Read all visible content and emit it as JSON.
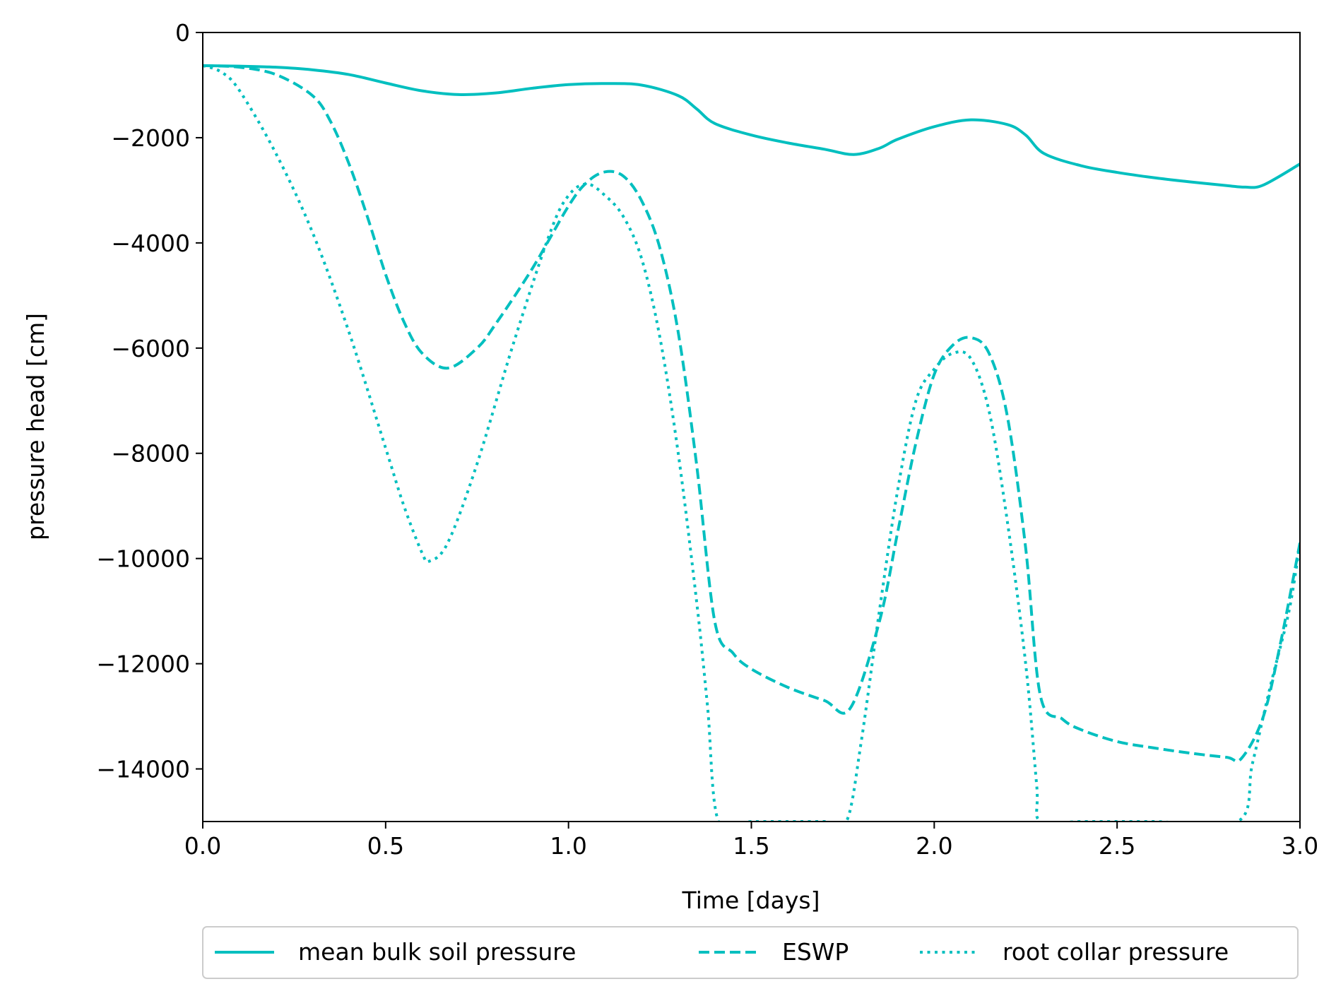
{
  "chart_data": {
    "type": "line",
    "xlabel": "Time [days]",
    "ylabel": "pressure head [cm]",
    "xlim": [
      0,
      3
    ],
    "ylim": [
      -15000,
      0
    ],
    "x_ticks": [
      0,
      0.5,
      1,
      1.5,
      2,
      2.5,
      3
    ],
    "x_tick_labels": [
      "0.0",
      "0.5",
      "1.0",
      "1.5",
      "2.0",
      "2.5",
      "3.0"
    ],
    "y_ticks": [
      0,
      -2000,
      -4000,
      -6000,
      -8000,
      -10000,
      -12000,
      -14000
    ],
    "y_tick_labels": [
      "0",
      "−2000",
      "−4000",
      "−6000",
      "−8000",
      "−10000",
      "−12000",
      "−14000"
    ],
    "grid": false,
    "legend_position": "bottom-outside",
    "series": [
      {
        "name": "mean bulk soil pressure",
        "style": "solid",
        "color": "#00bfbf",
        "points": [
          [
            0,
            -630
          ],
          [
            0.1,
            -640
          ],
          [
            0.2,
            -660
          ],
          [
            0.3,
            -710
          ],
          [
            0.4,
            -800
          ],
          [
            0.5,
            -960
          ],
          [
            0.6,
            -1110
          ],
          [
            0.7,
            -1180
          ],
          [
            0.8,
            -1150
          ],
          [
            0.9,
            -1060
          ],
          [
            1.0,
            -990
          ],
          [
            1.1,
            -970
          ],
          [
            1.2,
            -1000
          ],
          [
            1.3,
            -1200
          ],
          [
            1.35,
            -1450
          ],
          [
            1.4,
            -1730
          ],
          [
            1.5,
            -1950
          ],
          [
            1.6,
            -2100
          ],
          [
            1.7,
            -2220
          ],
          [
            1.78,
            -2320
          ],
          [
            1.85,
            -2200
          ],
          [
            1.9,
            -2030
          ],
          [
            2.0,
            -1790
          ],
          [
            2.1,
            -1660
          ],
          [
            2.2,
            -1750
          ],
          [
            2.25,
            -1950
          ],
          [
            2.3,
            -2300
          ],
          [
            2.4,
            -2530
          ],
          [
            2.5,
            -2660
          ],
          [
            2.6,
            -2760
          ],
          [
            2.7,
            -2840
          ],
          [
            2.8,
            -2910
          ],
          [
            2.85,
            -2940
          ],
          [
            2.9,
            -2900
          ],
          [
            3.0,
            -2500
          ]
        ]
      },
      {
        "name": "ESWP",
        "style": "dashed",
        "color": "#00bfbf",
        "points": [
          [
            0,
            -630
          ],
          [
            0.1,
            -660
          ],
          [
            0.2,
            -800
          ],
          [
            0.3,
            -1200
          ],
          [
            0.35,
            -1700
          ],
          [
            0.4,
            -2500
          ],
          [
            0.45,
            -3500
          ],
          [
            0.5,
            -4600
          ],
          [
            0.55,
            -5500
          ],
          [
            0.6,
            -6100
          ],
          [
            0.67,
            -6380
          ],
          [
            0.75,
            -6000
          ],
          [
            0.8,
            -5550
          ],
          [
            0.9,
            -4500
          ],
          [
            1.0,
            -3300
          ],
          [
            1.05,
            -2850
          ],
          [
            1.1,
            -2650
          ],
          [
            1.15,
            -2730
          ],
          [
            1.2,
            -3200
          ],
          [
            1.25,
            -4100
          ],
          [
            1.3,
            -5700
          ],
          [
            1.35,
            -8200
          ],
          [
            1.4,
            -11200
          ],
          [
            1.45,
            -11800
          ],
          [
            1.5,
            -12100
          ],
          [
            1.6,
            -12450
          ],
          [
            1.7,
            -12700
          ],
          [
            1.77,
            -12850
          ],
          [
            1.85,
            -11200
          ],
          [
            1.9,
            -9500
          ],
          [
            1.95,
            -7800
          ],
          [
            2.0,
            -6500
          ],
          [
            2.05,
            -5950
          ],
          [
            2.1,
            -5800
          ],
          [
            2.15,
            -6100
          ],
          [
            2.2,
            -7300
          ],
          [
            2.25,
            -9800
          ],
          [
            2.29,
            -12600
          ],
          [
            2.35,
            -13050
          ],
          [
            2.4,
            -13250
          ],
          [
            2.5,
            -13480
          ],
          [
            2.6,
            -13600
          ],
          [
            2.7,
            -13700
          ],
          [
            2.8,
            -13780
          ],
          [
            2.84,
            -13800
          ],
          [
            2.9,
            -13000
          ],
          [
            2.95,
            -11500
          ],
          [
            3.0,
            -9700
          ]
        ]
      },
      {
        "name": "root collar pressure",
        "style": "dotted",
        "color": "#00bfbf",
        "points": [
          [
            0,
            -630
          ],
          [
            0.05,
            -750
          ],
          [
            0.1,
            -1100
          ],
          [
            0.2,
            -2300
          ],
          [
            0.3,
            -3800
          ],
          [
            0.4,
            -5700
          ],
          [
            0.5,
            -7900
          ],
          [
            0.55,
            -9000
          ],
          [
            0.6,
            -9900
          ],
          [
            0.62,
            -10050
          ],
          [
            0.67,
            -9700
          ],
          [
            0.75,
            -8200
          ],
          [
            0.85,
            -5900
          ],
          [
            0.95,
            -3800
          ],
          [
            1.0,
            -3100
          ],
          [
            1.05,
            -2880
          ],
          [
            1.1,
            -3100
          ],
          [
            1.15,
            -3500
          ],
          [
            1.2,
            -4300
          ],
          [
            1.25,
            -5800
          ],
          [
            1.3,
            -8000
          ],
          [
            1.35,
            -10800
          ],
          [
            1.38,
            -12800
          ],
          [
            1.41,
            -15000
          ],
          [
            1.5,
            -15000
          ],
          [
            1.6,
            -15000
          ],
          [
            1.7,
            -15000
          ],
          [
            1.76,
            -15000
          ],
          [
            1.8,
            -13500
          ],
          [
            1.85,
            -11000
          ],
          [
            1.9,
            -8700
          ],
          [
            1.95,
            -7000
          ],
          [
            2.0,
            -6400
          ],
          [
            2.05,
            -6100
          ],
          [
            2.1,
            -6200
          ],
          [
            2.15,
            -7200
          ],
          [
            2.2,
            -9300
          ],
          [
            2.25,
            -12000
          ],
          [
            2.28,
            -14300
          ],
          [
            2.29,
            -15000
          ],
          [
            2.4,
            -15000
          ],
          [
            2.6,
            -15000
          ],
          [
            2.83,
            -15000
          ],
          [
            2.87,
            -13900
          ],
          [
            2.92,
            -12400
          ],
          [
            2.97,
            -11000
          ],
          [
            3.0,
            -9700
          ]
        ]
      }
    ]
  }
}
